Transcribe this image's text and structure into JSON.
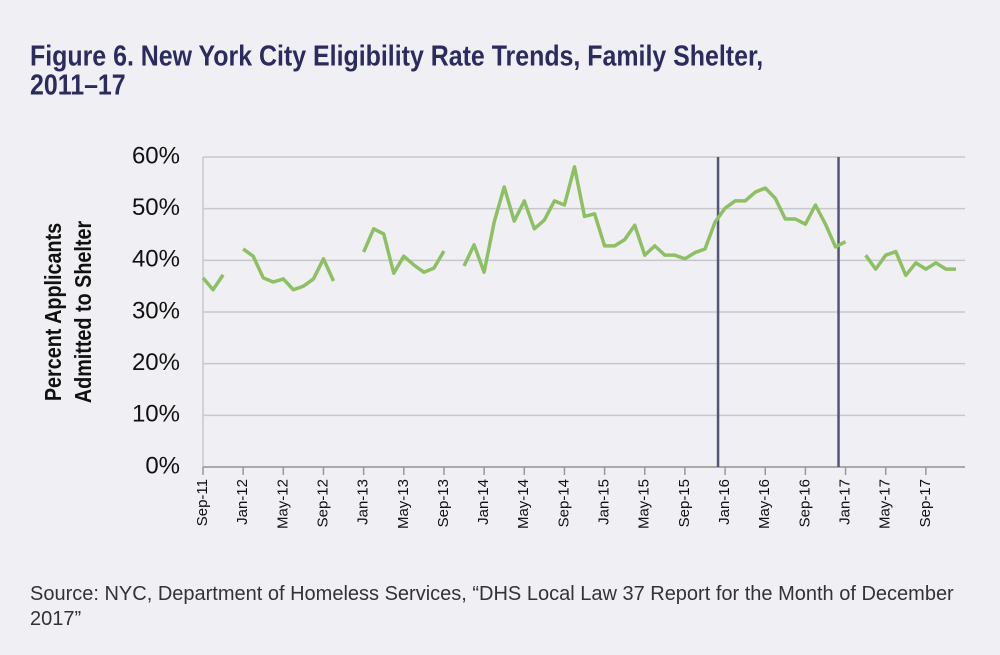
{
  "chart_data": {
    "type": "line",
    "title": [
      "Figure 6. New York City Eligibility Rate Trends, Family Shelter,",
      "2011–17"
    ],
    "y_label": [
      "Percent Applicants",
      "Admitted to Shelter"
    ],
    "categories": [
      "Sep-11",
      null,
      null,
      null,
      "Jan-12",
      null,
      null,
      null,
      "May-12",
      null,
      null,
      null,
      "Sep-12",
      null,
      null,
      null,
      "Jan-13",
      null,
      null,
      null,
      "May-13",
      null,
      null,
      null,
      "Sep-13",
      null,
      null,
      null,
      "Jan-14",
      null,
      null,
      null,
      "May-14",
      null,
      null,
      null,
      "Sep-14",
      null,
      null,
      null,
      "Jan-15",
      null,
      null,
      null,
      "May-15",
      null,
      null,
      null,
      "Sep-15",
      null,
      null,
      null,
      "Jan-16",
      null,
      null,
      null,
      "May-16",
      null,
      null,
      null,
      "Sep-16",
      null,
      null,
      null,
      "Jan-17",
      null,
      null,
      null,
      "May-17",
      null,
      null,
      null,
      "Sep-17",
      null,
      null,
      null
    ],
    "series": [
      {
        "name": "Eligibility rate",
        "color": "#8dc063",
        "values": [
          36.6,
          34.3,
          37.2,
          null,
          42.2,
          40.8,
          36.6,
          35.8,
          36.4,
          34.3,
          35,
          36.4,
          40.3,
          36,
          null,
          null,
          41.6,
          46.1,
          45.1,
          37.5,
          40.8,
          39.1,
          37.7,
          38.5,
          41.8,
          null,
          38.9,
          43,
          37.7,
          47.4,
          54.2,
          47.6,
          51.5,
          46.1,
          47.8,
          51.5,
          50.7,
          58.1,
          48.5,
          49,
          42.8,
          42.8,
          44,
          46.8,
          41,
          42.8,
          41,
          41,
          40.3,
          41.5,
          42.2,
          47.4,
          50.1,
          51.5,
          51.5,
          53.2,
          54,
          52,
          48,
          48,
          47,
          50.7,
          47,
          42.6,
          43.6,
          null,
          41,
          38.3,
          41,
          41.7,
          37.1,
          39.5,
          38.3,
          39.5,
          38.3,
          38.3
        ]
      }
    ],
    "vlines": [
      51.3,
      63.3
    ],
    "vline_color": "#545678",
    "ylim": [
      0,
      60
    ],
    "yticks": [
      {
        "value": 0,
        "label": "0%"
      },
      {
        "value": 10,
        "label": "10%"
      },
      {
        "value": 20,
        "label": "20%"
      },
      {
        "value": 30,
        "label": "30%"
      },
      {
        "value": 40,
        "label": "40%"
      },
      {
        "value": 50,
        "label": "50%"
      },
      {
        "value": 60,
        "label": "60%"
      }
    ],
    "grid": true,
    "source": "Source: NYC, Department of Homeless Services, “DHS Local Law 37 Report for the Month of December 2017”"
  }
}
